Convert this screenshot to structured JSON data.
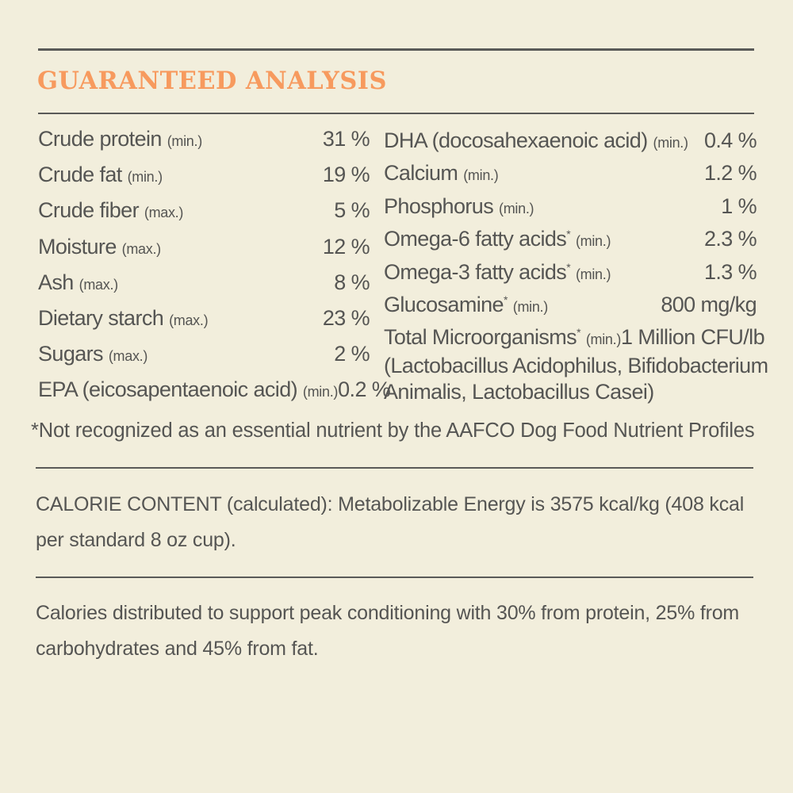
{
  "title": "GUARANTEED ANALYSIS",
  "left_rows": [
    {
      "name": "Crude protein",
      "qualifier": "(min.)",
      "value": "31 %",
      "asterisk": ""
    },
    {
      "name": "Crude fat",
      "qualifier": "(min.)",
      "value": "19 %",
      "asterisk": ""
    },
    {
      "name": "Crude fiber",
      "qualifier": "(max.)",
      "value": "5 %",
      "asterisk": ""
    },
    {
      "name": "Moisture",
      "qualifier": "(max.)",
      "value": "12 %",
      "asterisk": ""
    },
    {
      "name": "Ash",
      "qualifier": "(max.)",
      "value": "8 %",
      "asterisk": ""
    },
    {
      "name": "Dietary starch",
      "qualifier": "(max.)",
      "value": "23 %",
      "asterisk": ""
    },
    {
      "name": "Sugars",
      "qualifier": "(max.)",
      "value": "2 %",
      "asterisk": ""
    },
    {
      "name": "EPA (eicosapentaenoic acid)",
      "qualifier": "(min.)",
      "value": "0.2 %",
      "asterisk": ""
    }
  ],
  "right_rows": [
    {
      "name": "DHA (docosahexaenoic acid)",
      "qualifier": "(min.)",
      "value": "0.4 %",
      "asterisk": ""
    },
    {
      "name": "Calcium",
      "qualifier": "(min.)",
      "value": "1.2 %",
      "asterisk": ""
    },
    {
      "name": "Phosphorus",
      "qualifier": "(min.)",
      "value": "1 %",
      "asterisk": ""
    },
    {
      "name": "Omega-6 fatty acids",
      "qualifier": "(min.)",
      "value": "2.3 %",
      "asterisk": "*"
    },
    {
      "name": "Omega-3 fatty acids",
      "qualifier": "(min.)",
      "value": "1.3 %",
      "asterisk": "*"
    },
    {
      "name": "Glucosamine",
      "qualifier": "(min.)",
      "value": "800 mg/kg",
      "asterisk": "*"
    },
    {
      "name": "Total Microorganisms",
      "qualifier": "(min.)",
      "value": "1 Million CFU/lb",
      "asterisk": "*"
    }
  ],
  "microorganisms_detail": [
    "(Lactobacillus Acidophilus, Bifidobacterium",
    "Animalis, Lactobacillus Casei)"
  ],
  "footnote": "*Not recognized as an essential nutrient by the AAFCO Dog Food Nutrient Profiles",
  "calorie_content": "CALORIE CONTENT (calculated): Metabolizable Energy is 3575 kcal/kg (408 kcal per standard 8 oz cup).",
  "calorie_distribution": "Calories distributed to support peak conditioning with 30% from protein, 25% from carbohydrates and 45% from fat.",
  "colors": {
    "background": "#f2eedc",
    "title": "#f79a5e",
    "text": "#555553",
    "rule": "#5a5a58"
  }
}
